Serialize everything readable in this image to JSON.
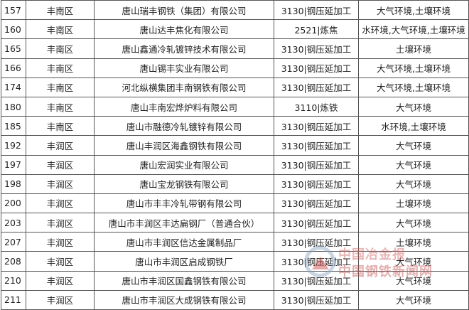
{
  "rows": [
    {
      "id": "157",
      "district": "丰南区",
      "company": "唐山瑞丰钢铁（集团）有限公司",
      "industry": "3130|钢压延加工",
      "env": "大气环境,土壤环境"
    },
    {
      "id": "160",
      "district": "丰南区",
      "company": "唐山达丰焦化有限公司",
      "industry": "2521|炼焦",
      "env": "水环境,大气环境,土壤环境"
    },
    {
      "id": "165",
      "district": "丰南区",
      "company": "唐山鑫通冷轧镀锌技术有限公司",
      "industry": "3130|钢压延加工",
      "env": "土壤环境"
    },
    {
      "id": "166",
      "district": "丰南区",
      "company": "唐山锡丰实业有限公司",
      "industry": "3130|钢压延加工",
      "env": "大气环境,土壤环境"
    },
    {
      "id": "174",
      "district": "丰南区",
      "company": "河北纵横集团丰南钢铁有限公司",
      "industry": "3130|钢压延加工",
      "env": "大气环境,土壤环境"
    },
    {
      "id": "180",
      "district": "丰南区",
      "company": "唐山丰南宏烨炉料有限公司",
      "industry": "3110|炼铁",
      "env": "大气环境"
    },
    {
      "id": "185",
      "district": "丰南区",
      "company": "唐山市融德冷轧镀锌有限公司",
      "industry": "3130|钢压延加工",
      "env": "水环境,土壤环境"
    },
    {
      "id": "192",
      "district": "丰润区",
      "company": "唐山丰润区海鑫钢铁有限公司",
      "industry": "3130|钢压延加工",
      "env": "大气环境"
    },
    {
      "id": "197",
      "district": "丰润区",
      "company": "唐山宏润实业有限公司",
      "industry": "3130|钢压延加工",
      "env": "大气环境"
    },
    {
      "id": "198",
      "district": "丰润区",
      "company": "唐山宝龙钢铁有限公司",
      "industry": "3130|钢压延加工",
      "env": "大气环境"
    },
    {
      "id": "200",
      "district": "丰润区",
      "company": "唐山市丰丰冷轧带钢有限公司",
      "industry": "3130|钢压延加工",
      "env": "土壤环境"
    },
    {
      "id": "203",
      "district": "丰润区",
      "company": "唐山市丰润区丰达扁钢厂（普通合伙）",
      "industry": "3130|钢压延加工",
      "env": "大气环境"
    },
    {
      "id": "207",
      "district": "丰润区",
      "company": "唐山市丰润区信达金属制品厂",
      "industry": "3130|钢压延加工",
      "env": "土壤环境"
    },
    {
      "id": "208",
      "district": "丰润区",
      "company": "唐山市丰润区启成钢铁厂",
      "industry": "3130|钢压延加工",
      "env": "大气环境"
    },
    {
      "id": "210",
      "district": "丰润区",
      "company": "唐山市丰润区国鑫钢铁有限公司",
      "industry": "3130|钢压延加工",
      "env": "大气环境"
    },
    {
      "id": "211",
      "district": "丰润区",
      "company": "唐山市丰润区大成钢铁有限公司",
      "industry": "3130|钢压延加工",
      "env": "大气环境"
    }
  ],
  "watermark": {
    "line1": "中国冶金报",
    "line2": "中国钢铁新闻网"
  }
}
